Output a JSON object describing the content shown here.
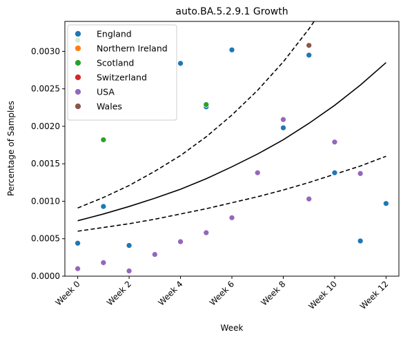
{
  "chart_data": {
    "type": "scatter",
    "title": "auto.BA.5.2.9.1 Growth",
    "xlabel": "Week",
    "ylabel": "Percentage of Samples",
    "x_ticks": [
      {
        "x": 0,
        "label": "Week 0"
      },
      {
        "x": 2,
        "label": "Week 2"
      },
      {
        "x": 4,
        "label": "Week 4"
      },
      {
        "x": 6,
        "label": "Week 6"
      },
      {
        "x": 8,
        "label": "Week 8"
      },
      {
        "x": 10,
        "label": "Week 10"
      },
      {
        "x": 12,
        "label": "Week 12"
      }
    ],
    "y_ticks": [
      {
        "y": 0,
        "label": "0.0000"
      },
      {
        "y": 0.0005,
        "label": "0.0005"
      },
      {
        "y": 0.001,
        "label": "0.0010"
      },
      {
        "y": 0.0015,
        "label": "0.0015"
      },
      {
        "y": 0.002,
        "label": "0.0020"
      },
      {
        "y": 0.0025,
        "label": "0.0025"
      },
      {
        "y": 0.003,
        "label": "0.0030"
      }
    ],
    "xlim": [
      -0.5,
      12.5
    ],
    "ylim": [
      0,
      0.0034
    ],
    "grid": false,
    "legend_position": "top-left",
    "series": [
      {
        "name": "England",
        "color": "#1f77b4",
        "points": [
          [
            0,
            0.00044
          ],
          [
            1,
            0.00093
          ],
          [
            2,
            0.00041
          ],
          [
            4,
            0.00284
          ],
          [
            5,
            0.00226
          ],
          [
            6,
            0.00302
          ],
          [
            8,
            0.00198
          ],
          [
            9,
            0.00295
          ],
          [
            10,
            0.00138
          ],
          [
            11,
            0.00047
          ],
          [
            12,
            0.00097
          ]
        ]
      },
      {
        "name": "Northern Ireland",
        "color": "#ff7f0e",
        "points": []
      },
      {
        "name": "Scotland",
        "color": "#2ca02c",
        "points": [
          [
            0,
            0.00315
          ],
          [
            1,
            0.00182
          ],
          [
            5,
            0.00229
          ]
        ]
      },
      {
        "name": "Switzerland",
        "color": "#d62728",
        "points": []
      },
      {
        "name": "USA",
        "color": "#9467bd",
        "points": [
          [
            0,
            0.0001
          ],
          [
            1,
            0.00018
          ],
          [
            2,
            7e-05
          ],
          [
            3,
            0.00029
          ],
          [
            4,
            0.00046
          ],
          [
            5,
            0.00058
          ],
          [
            6,
            0.00078
          ],
          [
            7,
            0.00138
          ],
          [
            8,
            0.00209
          ],
          [
            9,
            0.00103
          ],
          [
            10,
            0.00179
          ],
          [
            11,
            0.00137
          ]
        ]
      },
      {
        "name": "Wales",
        "color": "#8c564b",
        "points": [
          [
            9,
            0.00308
          ]
        ]
      }
    ],
    "fit_lines": [
      {
        "style": "solid",
        "color": "#000000",
        "x": [
          0,
          1,
          2,
          3,
          4,
          5,
          6,
          7,
          8,
          9,
          10,
          11,
          12
        ],
        "y": [
          0.00074,
          0.00083,
          0.00093,
          0.00104,
          0.00116,
          0.0013,
          0.00146,
          0.00163,
          0.00182,
          0.00204,
          0.00228,
          0.00255,
          0.00285
        ]
      },
      {
        "style": "dashed",
        "color": "#000000",
        "x": [
          0,
          1,
          2,
          3,
          4,
          5,
          6,
          7,
          8,
          9,
          9.2
        ],
        "y": [
          0.00091,
          0.00105,
          0.00121,
          0.0014,
          0.00161,
          0.00186,
          0.00215,
          0.00248,
          0.00286,
          0.0033,
          0.0034
        ]
      },
      {
        "style": "dashed",
        "color": "#000000",
        "x": [
          0,
          1,
          2,
          3,
          4,
          5,
          6,
          7,
          8,
          9,
          10,
          11,
          12
        ],
        "y": [
          0.0006,
          0.00065,
          0.0007,
          0.00076,
          0.00083,
          0.0009,
          0.00098,
          0.00106,
          0.00115,
          0.00125,
          0.00136,
          0.00147,
          0.0016
        ]
      }
    ]
  }
}
